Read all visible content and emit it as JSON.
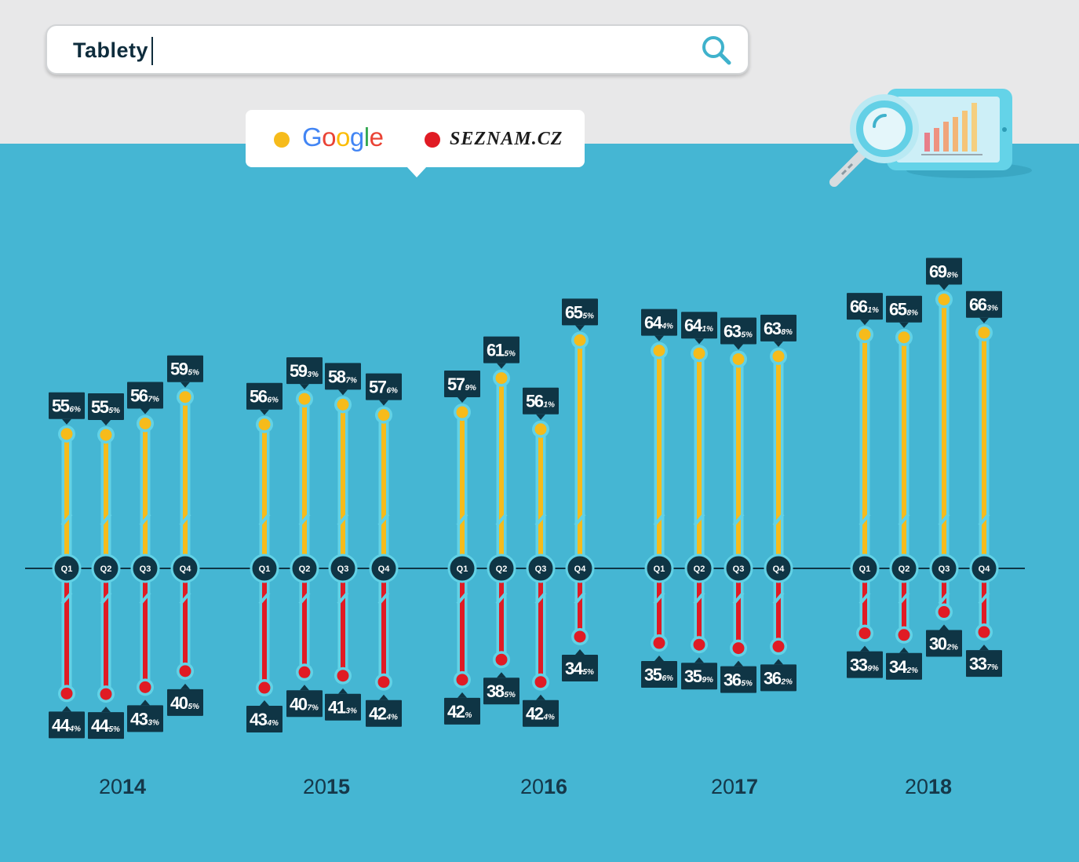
{
  "search": {
    "query": "Tablety"
  },
  "legend": {
    "items": [
      {
        "label": "Google",
        "color": "#f6bb1b"
      },
      {
        "label": "SEZNAM.CZ",
        "color": "#e01b24"
      }
    ]
  },
  "colors": {
    "background": "#45b6d3",
    "google_bar": "#f6bb1b",
    "seznam_bar": "#e01b24",
    "label_box": "#0f3545",
    "axis_line": "#0f3545"
  },
  "icons": {
    "search": "search-icon",
    "illustration": "magnifier-tablet-chart-icon"
  },
  "chart_data": {
    "type": "bar",
    "title": "",
    "xlabel": "",
    "ylabel": "",
    "year_labels": [
      {
        "prefix": "20",
        "suffix": "14"
      },
      {
        "prefix": "20",
        "suffix": "15"
      },
      {
        "prefix": "20",
        "suffix": "16"
      },
      {
        "prefix": "20",
        "suffix": "17"
      },
      {
        "prefix": "20",
        "suffix": "18"
      }
    ],
    "quarter_labels": [
      "Q1",
      "Q2",
      "Q3",
      "Q4"
    ],
    "categories": [
      "2014 Q1",
      "2014 Q2",
      "2014 Q3",
      "2014 Q4",
      "2015 Q1",
      "2015 Q2",
      "2015 Q3",
      "2015 Q4",
      "2016 Q1",
      "2016 Q2",
      "2016 Q3",
      "2016 Q4",
      "2017 Q1",
      "2017 Q2",
      "2017 Q3",
      "2017 Q4",
      "2018 Q1",
      "2018 Q2",
      "2018 Q3",
      "2018 Q4"
    ],
    "series": [
      {
        "name": "Google",
        "values": [
          55.6,
          55.5,
          56.7,
          59.5,
          56.6,
          59.3,
          58.7,
          57.6,
          57.9,
          61.5,
          56.1,
          65.5,
          64.4,
          64.1,
          63.5,
          63.8,
          66.1,
          65.8,
          69.8,
          66.3
        ],
        "labels": [
          {
            "int": "55",
            "dec": "6%"
          },
          {
            "int": "55",
            "dec": "5%"
          },
          {
            "int": "56",
            "dec": "7%"
          },
          {
            "int": "59",
            "dec": "5%"
          },
          {
            "int": "56",
            "dec": "6%"
          },
          {
            "int": "59",
            "dec": "3%"
          },
          {
            "int": "58",
            "dec": "7%"
          },
          {
            "int": "57",
            "dec": "6%"
          },
          {
            "int": "57",
            "dec": "9%"
          },
          {
            "int": "61",
            "dec": "5%"
          },
          {
            "int": "56",
            "dec": "1%"
          },
          {
            "int": "65",
            "dec": "5%"
          },
          {
            "int": "64",
            "dec": "4%"
          },
          {
            "int": "64",
            "dec": "1%"
          },
          {
            "int": "63",
            "dec": "5%"
          },
          {
            "int": "63",
            "dec": "8%"
          },
          {
            "int": "66",
            "dec": "1%"
          },
          {
            "int": "65",
            "dec": "8%"
          },
          {
            "int": "69",
            "dec": "8%"
          },
          {
            "int": "66",
            "dec": "3%"
          }
        ]
      },
      {
        "name": "SEZNAM.CZ",
        "values": [
          44.4,
          44.5,
          43.3,
          40.5,
          43.4,
          40.7,
          41.3,
          42.4,
          42,
          38.5,
          42.4,
          34.5,
          35.6,
          35.9,
          36.5,
          36.2,
          33.9,
          34.2,
          30.2,
          33.7
        ],
        "labels": [
          {
            "int": "44",
            "dec": "4%"
          },
          {
            "int": "44",
            "dec": "5%"
          },
          {
            "int": "43",
            "dec": "3%"
          },
          {
            "int": "40",
            "dec": "5%"
          },
          {
            "int": "43",
            "dec": "4%"
          },
          {
            "int": "40",
            "dec": "7%"
          },
          {
            "int": "41",
            "dec": "3%"
          },
          {
            "int": "42",
            "dec": "4%"
          },
          {
            "int": "42",
            "dec": "%"
          },
          {
            "int": "38",
            "dec": "5%"
          },
          {
            "int": "42",
            "dec": "4%"
          },
          {
            "int": "34",
            "dec": "5%"
          },
          {
            "int": "35",
            "dec": "6%"
          },
          {
            "int": "35",
            "dec": "9%"
          },
          {
            "int": "36",
            "dec": "5%"
          },
          {
            "int": "36",
            "dec": "2%"
          },
          {
            "int": "33",
            "dec": "9%"
          },
          {
            "int": "34",
            "dec": "2%"
          },
          {
            "int": "30",
            "dec": "2%"
          },
          {
            "int": "33",
            "dec": "7%"
          }
        ]
      }
    ],
    "axis_break": true,
    "grid": false,
    "legend_position": "top-left"
  }
}
